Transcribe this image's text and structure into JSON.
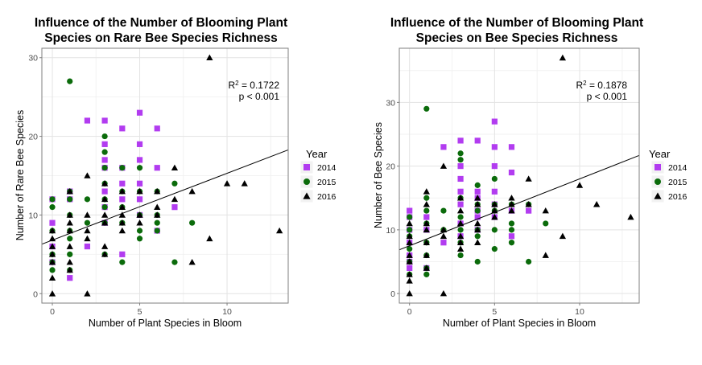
{
  "legend_title": "Year",
  "legend_items": [
    {
      "label": "2014",
      "color": "#b23cf0",
      "shape": "square"
    },
    {
      "label": "2015",
      "color": "#0b6b0b",
      "shape": "circle"
    },
    {
      "label": "2016",
      "color": "#000000",
      "shape": "triangle"
    }
  ],
  "chart_data": [
    {
      "type": "scatter",
      "title": "Influence of the Number of Blooming Plant Species on Rare Bee Species Richness",
      "title_lines": [
        "Influence of the Number of Blooming Plant",
        "Species on Rare Bee Species Richness"
      ],
      "xlabel": "Number of Plant Species in Bloom",
      "ylabel": "Number of Rare Bee Species",
      "xlim": [
        -0.6,
        13.5
      ],
      "ylim": [
        -1.2,
        31.2
      ],
      "xticks": [
        0,
        5,
        10
      ],
      "yticks": [
        0,
        10,
        20,
        30
      ],
      "grid": true,
      "legend_position": "right",
      "annotation": {
        "r2": "= 0.1722",
        "p": "p < 0.001"
      },
      "regression": {
        "intercept": 6.8,
        "slope": 0.85
      },
      "series": [
        {
          "name": "2014",
          "points": [
            [
              0,
              12
            ],
            [
              0,
              9
            ],
            [
              0,
              6
            ],
            [
              0,
              4
            ],
            [
              1,
              13
            ],
            [
              1,
              2
            ],
            [
              1,
              12
            ],
            [
              2,
              22
            ],
            [
              2,
              6
            ],
            [
              3,
              22
            ],
            [
              3,
              19
            ],
            [
              3,
              17
            ],
            [
              3,
              16
            ],
            [
              3,
              13
            ],
            [
              3,
              11
            ],
            [
              3,
              9
            ],
            [
              4,
              21
            ],
            [
              4,
              16
            ],
            [
              4,
              14
            ],
            [
              4,
              12
            ],
            [
              4,
              5
            ],
            [
              5,
              23
            ],
            [
              5,
              19
            ],
            [
              5,
              17
            ],
            [
              5,
              14
            ],
            [
              5,
              12
            ],
            [
              5,
              10
            ],
            [
              6,
              21
            ],
            [
              6,
              16
            ],
            [
              6,
              8
            ],
            [
              7,
              11
            ]
          ]
        },
        {
          "name": "2015",
          "points": [
            [
              0,
              12
            ],
            [
              0,
              11
            ],
            [
              0,
              8
            ],
            [
              0,
              5
            ],
            [
              0,
              4
            ],
            [
              0,
              3
            ],
            [
              1,
              27
            ],
            [
              1,
              13
            ],
            [
              1,
              12
            ],
            [
              1,
              10
            ],
            [
              1,
              8
            ],
            [
              1,
              7
            ],
            [
              1,
              5
            ],
            [
              1,
              3
            ],
            [
              2,
              12
            ],
            [
              2,
              9
            ],
            [
              3,
              20
            ],
            [
              3,
              18
            ],
            [
              3,
              16
            ],
            [
              3,
              14
            ],
            [
              3,
              12
            ],
            [
              3,
              11
            ],
            [
              3,
              9
            ],
            [
              3,
              5
            ],
            [
              4,
              16
            ],
            [
              4,
              13
            ],
            [
              4,
              11
            ],
            [
              4,
              9
            ],
            [
              4,
              4
            ],
            [
              5,
              16
            ],
            [
              5,
              13
            ],
            [
              5,
              10
            ],
            [
              5,
              8
            ],
            [
              5,
              7
            ],
            [
              6,
              13
            ],
            [
              6,
              10
            ],
            [
              6,
              9
            ],
            [
              6,
              8
            ],
            [
              7,
              14
            ],
            [
              7,
              4
            ],
            [
              8,
              9
            ]
          ]
        },
        {
          "name": "2016",
          "points": [
            [
              0,
              8
            ],
            [
              0,
              7
            ],
            [
              0,
              6
            ],
            [
              0,
              5
            ],
            [
              0,
              4
            ],
            [
              0,
              2
            ],
            [
              0,
              0
            ],
            [
              1,
              13
            ],
            [
              1,
              10
            ],
            [
              1,
              9
            ],
            [
              1,
              8
            ],
            [
              1,
              6
            ],
            [
              1,
              4
            ],
            [
              1,
              3
            ],
            [
              2,
              15
            ],
            [
              2,
              10
            ],
            [
              2,
              8
            ],
            [
              2,
              7
            ],
            [
              2,
              0
            ],
            [
              3,
              14
            ],
            [
              3,
              12
            ],
            [
              3,
              10
            ],
            [
              3,
              9
            ],
            [
              3,
              6
            ],
            [
              3,
              5
            ],
            [
              4,
              13
            ],
            [
              4,
              11
            ],
            [
              4,
              10
            ],
            [
              4,
              9
            ],
            [
              4,
              8
            ],
            [
              5,
              13
            ],
            [
              5,
              10
            ],
            [
              5,
              9
            ],
            [
              6,
              13
            ],
            [
              6,
              11
            ],
            [
              6,
              10
            ],
            [
              7,
              16
            ],
            [
              7,
              12
            ],
            [
              8,
              13
            ],
            [
              8,
              4
            ],
            [
              9,
              30
            ],
            [
              9,
              7
            ],
            [
              10,
              14
            ],
            [
              11,
              14
            ],
            [
              13,
              8
            ]
          ]
        }
      ]
    },
    {
      "type": "scatter",
      "title": "Influence of the Number of Blooming Plant Species on Bee Species Richness",
      "title_lines": [
        "Influence of the Number of Blooming Plant",
        "Species on Bee Species Richness"
      ],
      "xlabel": "Number of Plant Species in Bloom",
      "ylabel": "Number of Bee Species",
      "xlim": [
        -0.6,
        13.5
      ],
      "ylim": [
        -1.5,
        38.5
      ],
      "xticks": [
        0,
        5,
        10
      ],
      "yticks": [
        0,
        10,
        20,
        30
      ],
      "grid": true,
      "legend_position": "right",
      "annotation": {
        "r2": "= 0.1878",
        "p": "p < 0.001"
      },
      "regression": {
        "intercept": 7.5,
        "slope": 1.05
      },
      "series": [
        {
          "name": "2014",
          "points": [
            [
              0,
              13
            ],
            [
              0,
              12
            ],
            [
              0,
              10
            ],
            [
              0,
              8
            ],
            [
              0,
              6
            ],
            [
              0,
              5
            ],
            [
              0,
              4
            ],
            [
              1,
              12
            ],
            [
              1,
              10
            ],
            [
              1,
              4
            ],
            [
              2,
              23
            ],
            [
              2,
              8
            ],
            [
              3,
              24
            ],
            [
              3,
              20
            ],
            [
              3,
              18
            ],
            [
              3,
              16
            ],
            [
              3,
              14
            ],
            [
              3,
              11
            ],
            [
              3,
              9
            ],
            [
              4,
              24
            ],
            [
              4,
              16
            ],
            [
              4,
              15
            ],
            [
              4,
              13
            ],
            [
              4,
              12
            ],
            [
              4,
              10
            ],
            [
              5,
              27
            ],
            [
              5,
              23
            ],
            [
              5,
              20
            ],
            [
              5,
              16
            ],
            [
              5,
              14
            ],
            [
              5,
              12
            ],
            [
              6,
              23
            ],
            [
              6,
              19
            ],
            [
              6,
              13
            ],
            [
              6,
              9
            ],
            [
              7,
              13
            ]
          ]
        },
        {
          "name": "2015",
          "points": [
            [
              0,
              12
            ],
            [
              0,
              10
            ],
            [
              0,
              9
            ],
            [
              0,
              7
            ],
            [
              0,
              5
            ],
            [
              0,
              3
            ],
            [
              1,
              29
            ],
            [
              1,
              15
            ],
            [
              1,
              13
            ],
            [
              1,
              11
            ],
            [
              1,
              8
            ],
            [
              1,
              6
            ],
            [
              1,
              4
            ],
            [
              1,
              3
            ],
            [
              2,
              13
            ],
            [
              2,
              10
            ],
            [
              3,
              22
            ],
            [
              3,
              21
            ],
            [
              3,
              15
            ],
            [
              3,
              12
            ],
            [
              3,
              10
            ],
            [
              3,
              8
            ],
            [
              3,
              6
            ],
            [
              4,
              17
            ],
            [
              4,
              14
            ],
            [
              4,
              13
            ],
            [
              4,
              10
            ],
            [
              4,
              9
            ],
            [
              4,
              5
            ],
            [
              5,
              18
            ],
            [
              5,
              14
            ],
            [
              5,
              13
            ],
            [
              5,
              10
            ],
            [
              5,
              7
            ],
            [
              6,
              14
            ],
            [
              6,
              11
            ],
            [
              6,
              10
            ],
            [
              6,
              8
            ],
            [
              7,
              14
            ],
            [
              7,
              5
            ],
            [
              8,
              11
            ]
          ]
        },
        {
          "name": "2016",
          "points": [
            [
              0,
              11
            ],
            [
              0,
              9
            ],
            [
              0,
              8
            ],
            [
              0,
              6
            ],
            [
              0,
              5
            ],
            [
              0,
              3
            ],
            [
              0,
              2
            ],
            [
              0,
              0
            ],
            [
              1,
              16
            ],
            [
              1,
              14
            ],
            [
              1,
              11
            ],
            [
              1,
              10
            ],
            [
              1,
              8
            ],
            [
              1,
              6
            ],
            [
              1,
              4
            ],
            [
              2,
              20
            ],
            [
              2,
              10
            ],
            [
              2,
              9
            ],
            [
              2,
              0
            ],
            [
              3,
              15
            ],
            [
              3,
              13
            ],
            [
              3,
              11
            ],
            [
              3,
              9
            ],
            [
              3,
              8
            ],
            [
              3,
              7
            ],
            [
              4,
              15
            ],
            [
              4,
              14
            ],
            [
              4,
              11
            ],
            [
              4,
              10
            ],
            [
              4,
              8
            ],
            [
              5,
              14
            ],
            [
              5,
              13
            ],
            [
              5,
              12
            ],
            [
              6,
              15
            ],
            [
              6,
              14
            ],
            [
              6,
              13
            ],
            [
              7,
              18
            ],
            [
              7,
              14
            ],
            [
              8,
              13
            ],
            [
              8,
              6
            ],
            [
              9,
              37
            ],
            [
              9,
              9
            ],
            [
              10,
              17
            ],
            [
              11,
              14
            ],
            [
              13,
              12
            ]
          ]
        }
      ]
    }
  ]
}
